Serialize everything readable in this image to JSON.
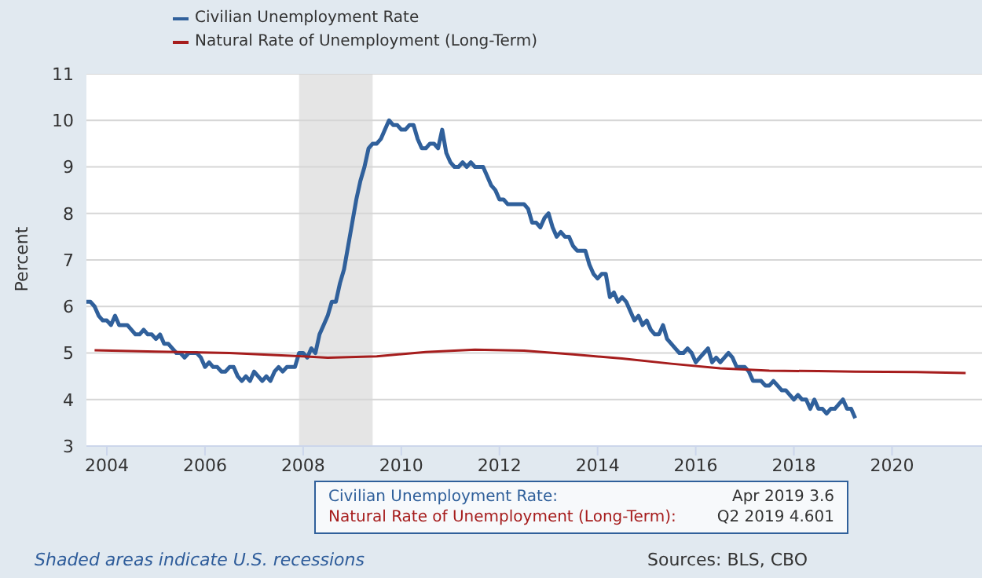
{
  "chart_data": {
    "type": "line",
    "ylabel": "Percent",
    "legend": "top left",
    "grid": "y",
    "marker": "none",
    "line_style": "solid",
    "xlim": [
      "2003-08",
      "2021-11"
    ],
    "xticks": [
      "2004",
      "2006",
      "2008",
      "2010",
      "2012",
      "2014",
      "2016",
      "2018",
      "2020"
    ],
    "ylim": [
      3,
      11
    ],
    "yticks": [
      3,
      4,
      5,
      6,
      7,
      8,
      9,
      10,
      11
    ],
    "bands": [
      {
        "axis": "x",
        "from": "2007-12",
        "to": "2009-06",
        "color": "#e5e5e5"
      }
    ],
    "series": [
      {
        "name": "Civilian Unemployment Rate",
        "color": "#30609b",
        "x": [
          "2003-08",
          "2003-09",
          "2003-10",
          "2003-11",
          "2003-12",
          "2004-01",
          "2004-02",
          "2004-03",
          "2004-04",
          "2004-05",
          "2004-06",
          "2004-07",
          "2004-08",
          "2004-09",
          "2004-10",
          "2004-11",
          "2004-12",
          "2005-01",
          "2005-02",
          "2005-03",
          "2005-04",
          "2005-05",
          "2005-06",
          "2005-07",
          "2005-08",
          "2005-09",
          "2005-10",
          "2005-11",
          "2005-12",
          "2006-01",
          "2006-02",
          "2006-03",
          "2006-04",
          "2006-05",
          "2006-06",
          "2006-07",
          "2006-08",
          "2006-09",
          "2006-10",
          "2006-11",
          "2006-12",
          "2007-01",
          "2007-02",
          "2007-03",
          "2007-04",
          "2007-05",
          "2007-06",
          "2007-07",
          "2007-08",
          "2007-09",
          "2007-10",
          "2007-11",
          "2007-12",
          "2008-01",
          "2008-02",
          "2008-03",
          "2008-04",
          "2008-05",
          "2008-06",
          "2008-07",
          "2008-08",
          "2008-09",
          "2008-10",
          "2008-11",
          "2008-12",
          "2009-01",
          "2009-02",
          "2009-03",
          "2009-04",
          "2009-05",
          "2009-06",
          "2009-07",
          "2009-08",
          "2009-09",
          "2009-10",
          "2009-11",
          "2009-12",
          "2010-01",
          "2010-02",
          "2010-03",
          "2010-04",
          "2010-05",
          "2010-06",
          "2010-07",
          "2010-08",
          "2010-09",
          "2010-10",
          "2010-11",
          "2010-12",
          "2011-01",
          "2011-02",
          "2011-03",
          "2011-04",
          "2011-05",
          "2011-06",
          "2011-07",
          "2011-08",
          "2011-09",
          "2011-10",
          "2011-11",
          "2011-12",
          "2012-01",
          "2012-02",
          "2012-03",
          "2012-04",
          "2012-05",
          "2012-06",
          "2012-07",
          "2012-08",
          "2012-09",
          "2012-10",
          "2012-11",
          "2012-12",
          "2013-01",
          "2013-02",
          "2013-03",
          "2013-04",
          "2013-05",
          "2013-06",
          "2013-07",
          "2013-08",
          "2013-09",
          "2013-10",
          "2013-11",
          "2013-12",
          "2014-01",
          "2014-02",
          "2014-03",
          "2014-04",
          "2014-05",
          "2014-06",
          "2014-07",
          "2014-08",
          "2014-09",
          "2014-10",
          "2014-11",
          "2014-12",
          "2015-01",
          "2015-02",
          "2015-03",
          "2015-04",
          "2015-05",
          "2015-06",
          "2015-07",
          "2015-08",
          "2015-09",
          "2015-10",
          "2015-11",
          "2015-12",
          "2016-01",
          "2016-02",
          "2016-03",
          "2016-04",
          "2016-05",
          "2016-06",
          "2016-07",
          "2016-08",
          "2016-09",
          "2016-10",
          "2016-11",
          "2016-12",
          "2017-01",
          "2017-02",
          "2017-03",
          "2017-04",
          "2017-05",
          "2017-06",
          "2017-07",
          "2017-08",
          "2017-09",
          "2017-10",
          "2017-11",
          "2017-12",
          "2018-01",
          "2018-02",
          "2018-03",
          "2018-04",
          "2018-05",
          "2018-06",
          "2018-07",
          "2018-08",
          "2018-09",
          "2018-10",
          "2018-11",
          "2018-12",
          "2019-01",
          "2019-02",
          "2019-03",
          "2019-04"
        ],
        "values": [
          6.1,
          6.1,
          6.0,
          5.8,
          5.7,
          5.7,
          5.6,
          5.8,
          5.6,
          5.6,
          5.6,
          5.5,
          5.4,
          5.4,
          5.5,
          5.4,
          5.4,
          5.3,
          5.4,
          5.2,
          5.2,
          5.1,
          5.0,
          5.0,
          4.9,
          5.0,
          5.0,
          5.0,
          4.9,
          4.7,
          4.8,
          4.7,
          4.7,
          4.6,
          4.6,
          4.7,
          4.7,
          4.5,
          4.4,
          4.5,
          4.4,
          4.6,
          4.5,
          4.4,
          4.5,
          4.4,
          4.6,
          4.7,
          4.6,
          4.7,
          4.7,
          4.7,
          5.0,
          5.0,
          4.9,
          5.1,
          5.0,
          5.4,
          5.6,
          5.8,
          6.1,
          6.1,
          6.5,
          6.8,
          7.3,
          7.8,
          8.3,
          8.7,
          9.0,
          9.4,
          9.5,
          9.5,
          9.6,
          9.8,
          10.0,
          9.9,
          9.9,
          9.8,
          9.8,
          9.9,
          9.9,
          9.6,
          9.4,
          9.4,
          9.5,
          9.5,
          9.4,
          9.8,
          9.3,
          9.1,
          9.0,
          9.0,
          9.1,
          9.0,
          9.1,
          9.0,
          9.0,
          9.0,
          8.8,
          8.6,
          8.5,
          8.3,
          8.3,
          8.2,
          8.2,
          8.2,
          8.2,
          8.2,
          8.1,
          7.8,
          7.8,
          7.7,
          7.9,
          8.0,
          7.7,
          7.5,
          7.6,
          7.5,
          7.5,
          7.3,
          7.2,
          7.2,
          7.2,
          6.9,
          6.7,
          6.6,
          6.7,
          6.7,
          6.2,
          6.3,
          6.1,
          6.2,
          6.1,
          5.9,
          5.7,
          5.8,
          5.6,
          5.7,
          5.5,
          5.4,
          5.4,
          5.6,
          5.3,
          5.2,
          5.1,
          5.0,
          5.0,
          5.1,
          5.0,
          4.8,
          4.9,
          5.0,
          5.1,
          4.8,
          4.9,
          4.8,
          4.9,
          5.0,
          4.9,
          4.7,
          4.7,
          4.7,
          4.6,
          4.4,
          4.4,
          4.4,
          4.3,
          4.3,
          4.4,
          4.3,
          4.2,
          4.2,
          4.1,
          4.0,
          4.1,
          4.0,
          4.0,
          3.8,
          4.0,
          3.8,
          3.8,
          3.7,
          3.8,
          3.8,
          3.9,
          4.0,
          3.8,
          3.8,
          3.6
        ]
      },
      {
        "name": "Natural Rate of Unemployment (Long-Term)",
        "color": "#a61d1d",
        "x": [
          "2003-10",
          "2005-01",
          "2006-07",
          "2008-01",
          "2008-07",
          "2009-07",
          "2010-07",
          "2011-07",
          "2012-07",
          "2013-07",
          "2014-07",
          "2015-07",
          "2016-07",
          "2017-07",
          "2018-07",
          "2019-04",
          "2020-07",
          "2021-07"
        ],
        "values": [
          5.06,
          5.03,
          5.0,
          4.93,
          4.9,
          4.93,
          5.02,
          5.07,
          5.05,
          4.97,
          4.88,
          4.77,
          4.67,
          4.62,
          4.61,
          4.6,
          4.59,
          4.57
        ]
      }
    ],
    "annotations": [
      "Civilian Unemployment Rate:",
      "Apr 2019 3.6",
      "Natural Rate of Unemployment (Long-Term):",
      "Q2 2019 4.601",
      "Shaded areas indicate U.S. recessions",
      "Sources: BLS, CBO"
    ]
  }
}
